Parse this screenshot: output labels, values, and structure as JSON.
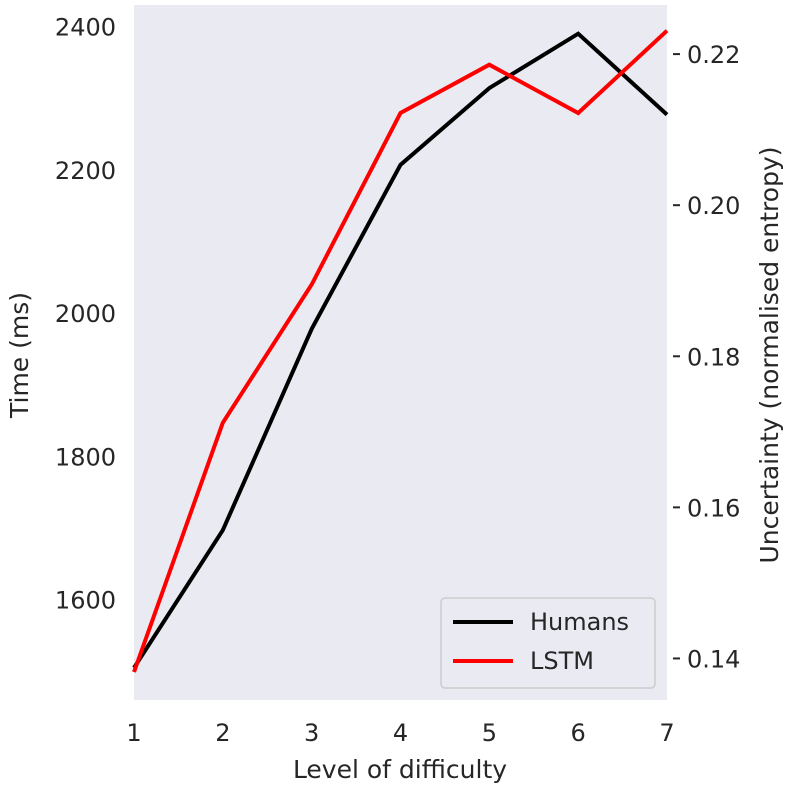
{
  "chart_data": {
    "type": "line",
    "xlabel": "Level of difficulty",
    "ylabel_left": "Time (ms)",
    "ylabel_right": "Uncertainty (normalised entropy)",
    "x": [
      1,
      2,
      3,
      4,
      5,
      6,
      7
    ],
    "x_ticks": [
      "1",
      "2",
      "3",
      "4",
      "5",
      "6",
      "7"
    ],
    "xlim": [
      1,
      7
    ],
    "ylim_left": [
      1460,
      2430
    ],
    "ylim_right": [
      0.1345,
      0.2265
    ],
    "y_ticks_left": [
      "1600",
      "1800",
      "2000",
      "2200",
      "2400"
    ],
    "y_ticks_right": [
      "0.14",
      "0.16",
      "0.18",
      "0.20",
      "0.22"
    ],
    "series": [
      {
        "name": "Humans",
        "axis": "left",
        "color": "#000000",
        "values": [
          1505,
          1697,
          1978,
          2207,
          2314,
          2390,
          2277
        ]
      },
      {
        "name": "LSTM",
        "axis": "right",
        "color": "#ff0000",
        "values": [
          0.1382,
          0.1712,
          0.1895,
          0.2122,
          0.2186,
          0.2122,
          0.2231
        ]
      }
    ],
    "grid": false,
    "background": "#eaeaf2",
    "legend_position": "lower right"
  }
}
